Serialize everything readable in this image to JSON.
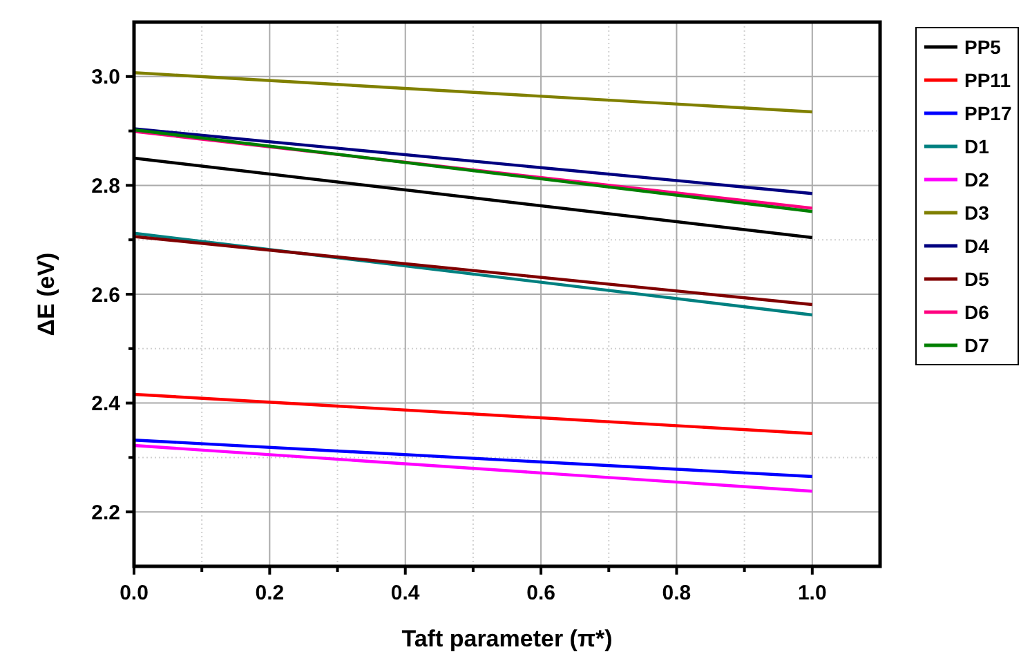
{
  "chart_data": {
    "type": "line",
    "xlabel": "Taft parameter (π*)",
    "ylabel": "ΔE (eV)",
    "x": [
      0,
      1
    ],
    "xlim": [
      0,
      1.1
    ],
    "xticks": [
      {
        "value": 0,
        "label": "0.0"
      },
      0.2,
      0.4,
      0.6,
      0.8,
      {
        "value": 1,
        "label": "1.0"
      }
    ],
    "ylim": [
      2.1,
      3.1
    ],
    "yticks": [
      2.2,
      2.4,
      2.6,
      2.8,
      {
        "value": 3,
        "label": "3.0"
      }
    ],
    "grid": true,
    "legend": "top right",
    "marker": "none",
    "line_style": "solid",
    "series": [
      {
        "name": "PP5",
        "color": "#000000",
        "values": [
          2.85,
          2.704
        ]
      },
      {
        "name": "PP11",
        "color": "#ff0000",
        "values": [
          2.416,
          2.344
        ]
      },
      {
        "name": "PP17",
        "color": "#0000ff",
        "values": [
          2.332,
          2.265
        ]
      },
      {
        "name": "D1",
        "color": "#008080",
        "values": [
          2.712,
          2.562
        ]
      },
      {
        "name": "D2",
        "color": "#ff00ff",
        "values": [
          2.322,
          2.238
        ]
      },
      {
        "name": "D3",
        "color": "#808000",
        "values": [
          3.007,
          2.935
        ]
      },
      {
        "name": "D4",
        "color": "#000080",
        "values": [
          2.904,
          2.785
        ]
      },
      {
        "name": "D5",
        "color": "#800000",
        "values": [
          2.706,
          2.581
        ]
      },
      {
        "name": "D6",
        "color": "#ff0080",
        "values": [
          2.899,
          2.758
        ]
      },
      {
        "name": "D7",
        "color": "#008000",
        "values": [
          2.902,
          2.752
        ]
      }
    ]
  }
}
